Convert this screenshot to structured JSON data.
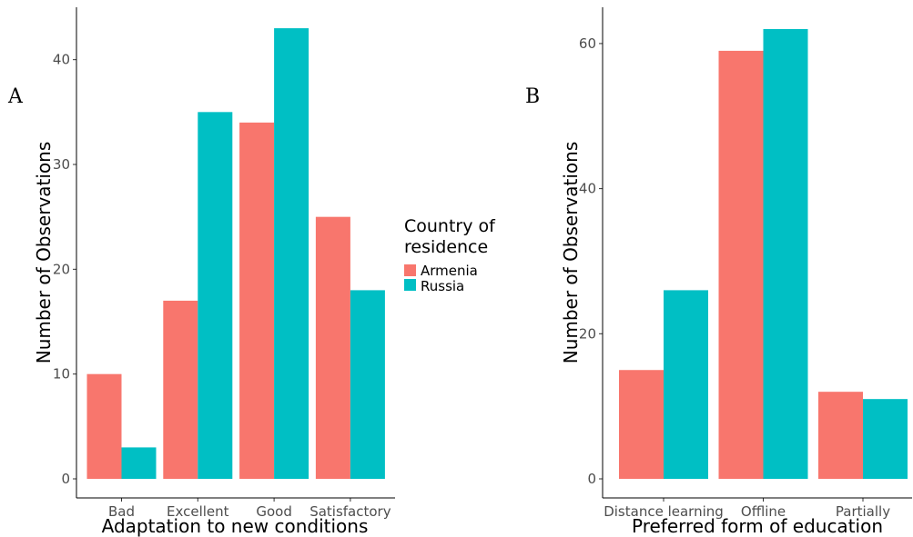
{
  "chart_data": [
    {
      "type": "bar",
      "panel_label": "A",
      "categories": [
        "Bad",
        "Excellent",
        "Good",
        "Satisfactory"
      ],
      "series": [
        {
          "name": "Armenia",
          "values": [
            10,
            17,
            34,
            25
          ],
          "color": "#F8766D"
        },
        {
          "name": "Russia",
          "values": [
            3,
            35,
            43,
            18
          ],
          "color": "#00BFC4"
        }
      ],
      "xlabel": "Adaptation to new conditions",
      "ylabel": "Number of Observations",
      "ylim": [
        0,
        45
      ],
      "yticks": [
        0,
        10,
        20,
        30,
        40
      ],
      "grid": false,
      "legend": {
        "title_line1": "Country of",
        "title_line2": "residence",
        "placement": "right",
        "entries": [
          {
            "label": "Armenia",
            "color": "#F8766D"
          },
          {
            "label": "Russia",
            "color": "#00BFC4"
          }
        ]
      }
    },
    {
      "type": "bar",
      "panel_label": "B",
      "categories": [
        "Distance learning",
        "Offline",
        "Partially"
      ],
      "series": [
        {
          "name": "Armenia",
          "values": [
            15,
            59,
            12
          ],
          "color": "#F8766D"
        },
        {
          "name": "Russia",
          "values": [
            26,
            62,
            11
          ],
          "color": "#00BFC4"
        }
      ],
      "xlabel": "Preferred form of education",
      "ylabel": "Number of Observations",
      "ylim": [
        0,
        65
      ],
      "yticks": [
        0,
        20,
        40,
        60
      ],
      "grid": false
    }
  ]
}
